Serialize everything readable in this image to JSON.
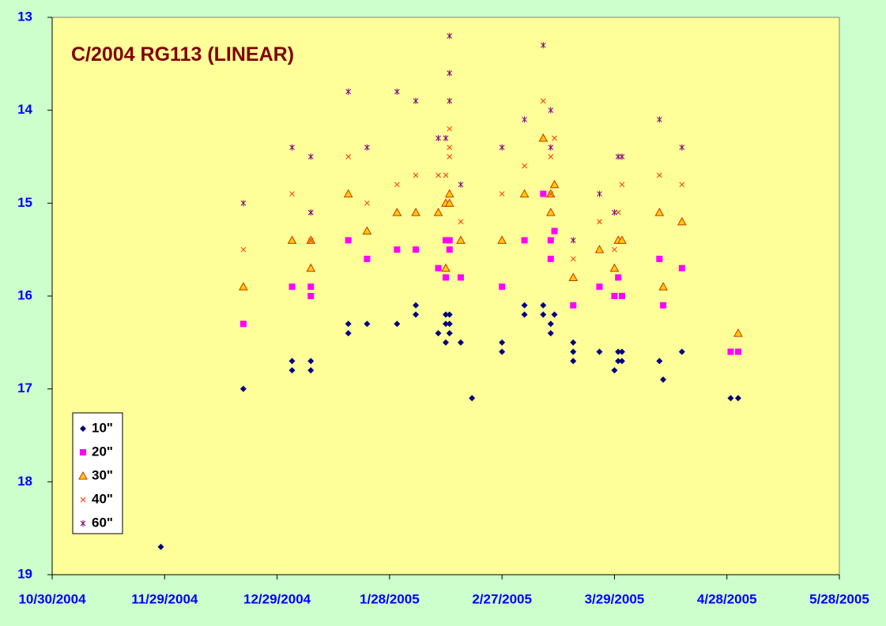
{
  "chart_data": {
    "type": "scatter",
    "title": "C/2004 RG113 (LINEAR)",
    "xlim": [
      "10/30/2004",
      "5/28/2005"
    ],
    "xticks": [
      "10/30/2004",
      "11/29/2004",
      "12/29/2004",
      "1/28/2005",
      "2/27/2005",
      "3/29/2005",
      "4/28/2005",
      "5/28/2005"
    ],
    "ylim": [
      13,
      19
    ],
    "yticks": [
      13,
      14,
      15,
      16,
      17,
      18,
      19
    ],
    "y_reversed": true,
    "grid": false,
    "legend": "lower left",
    "series": [
      {
        "name": "10\"",
        "color": "#000080",
        "marker": "diamond",
        "x": [
          "11/28/2004",
          "12/20/2004",
          "1/2/2005",
          "1/2/2005",
          "1/7/2005",
          "1/7/2005",
          "1/17/2005",
          "1/17/2005",
          "1/22/2005",
          "1/30/2005",
          "2/4/2005",
          "2/4/2005",
          "2/10/2005",
          "2/12/2005",
          "2/12/2005",
          "2/12/2005",
          "2/13/2005",
          "2/13/2005",
          "2/13/2005",
          "2/16/2005",
          "2/19/2005",
          "2/27/2005",
          "2/27/2005",
          "3/5/2005",
          "3/5/2005",
          "3/10/2005",
          "3/10/2005",
          "3/12/2005",
          "3/12/2005",
          "3/13/2005",
          "3/18/2005",
          "3/18/2005",
          "3/18/2005",
          "3/25/2005",
          "3/29/2005",
          "3/30/2005",
          "3/30/2005",
          "3/31/2005",
          "3/31/2005",
          "4/10/2005",
          "4/11/2005",
          "4/16/2005",
          "4/29/2005",
          "5/1/2005"
        ],
        "values": [
          18.7,
          17.0,
          16.7,
          16.8,
          16.7,
          16.8,
          16.3,
          16.4,
          16.3,
          16.3,
          16.1,
          16.2,
          16.4,
          16.2,
          16.3,
          16.5,
          16.2,
          16.3,
          16.4,
          16.5,
          17.1,
          16.5,
          16.6,
          16.1,
          16.2,
          16.1,
          16.2,
          16.3,
          16.4,
          16.2,
          16.5,
          16.6,
          16.7,
          16.6,
          16.8,
          16.6,
          16.7,
          16.6,
          16.7,
          16.7,
          16.9,
          16.6,
          17.1,
          17.1
        ]
      },
      {
        "name": "20\"",
        "color": "#ff00ff",
        "marker": "square",
        "x": [
          "12/20/2004",
          "1/2/2005",
          "1/7/2005",
          "1/7/2005",
          "1/17/2005",
          "1/22/2005",
          "1/30/2005",
          "2/4/2005",
          "2/10/2005",
          "2/12/2005",
          "2/12/2005",
          "2/13/2005",
          "2/13/2005",
          "2/16/2005",
          "2/27/2005",
          "3/5/2005",
          "3/10/2005",
          "3/12/2005",
          "3/12/2005",
          "3/13/2005",
          "3/18/2005",
          "3/25/2005",
          "3/29/2005",
          "3/30/2005",
          "3/31/2005",
          "4/10/2005",
          "4/11/2005",
          "4/16/2005",
          "4/29/2005",
          "5/1/2005"
        ],
        "values": [
          16.3,
          15.9,
          15.9,
          16.0,
          15.4,
          15.6,
          15.5,
          15.5,
          15.7,
          15.4,
          15.8,
          15.4,
          15.5,
          15.8,
          15.9,
          15.4,
          14.9,
          15.4,
          15.6,
          15.3,
          16.1,
          15.9,
          16.0,
          15.8,
          16.0,
          15.6,
          16.1,
          15.7,
          16.6,
          16.6
        ]
      },
      {
        "name": "30\"",
        "color": "#ffcc00",
        "marker": "triangle",
        "x": [
          "12/20/2004",
          "1/2/2005",
          "1/7/2005",
          "1/7/2005",
          "1/17/2005",
          "1/22/2005",
          "1/30/2005",
          "2/4/2005",
          "2/10/2005",
          "2/12/2005",
          "2/12/2005",
          "2/13/2005",
          "2/13/2005",
          "2/16/2005",
          "2/27/2005",
          "3/5/2005",
          "3/10/2005",
          "3/12/2005",
          "3/12/2005",
          "3/13/2005",
          "3/18/2005",
          "3/25/2005",
          "3/29/2005",
          "3/30/2005",
          "3/31/2005",
          "4/10/2005",
          "4/11/2005",
          "4/16/2005",
          "5/1/2005"
        ],
        "values": [
          15.9,
          15.4,
          15.4,
          15.7,
          14.9,
          15.3,
          15.1,
          15.1,
          15.1,
          15.7,
          15.0,
          14.9,
          15.0,
          15.4,
          15.4,
          14.9,
          14.3,
          14.9,
          15.1,
          14.8,
          15.8,
          15.5,
          15.7,
          15.4,
          15.4,
          15.1,
          15.9,
          15.2,
          16.4
        ]
      },
      {
        "name": "40\"",
        "color": "#ff3300",
        "marker": "x",
        "x": [
          "12/20/2004",
          "1/2/2005",
          "1/7/2005",
          "1/7/2005",
          "1/17/2005",
          "1/22/2005",
          "1/30/2005",
          "2/4/2005",
          "2/10/2005",
          "2/12/2005",
          "2/13/2005",
          "2/13/2005",
          "2/13/2005",
          "2/16/2005",
          "2/27/2005",
          "3/5/2005",
          "3/10/2005",
          "3/12/2005",
          "3/12/2005",
          "3/13/2005",
          "3/18/2005",
          "3/25/2005",
          "3/29/2005",
          "3/30/2005",
          "3/31/2005",
          "4/10/2005",
          "4/16/2005"
        ],
        "values": [
          15.5,
          14.9,
          15.4,
          15.1,
          14.5,
          15.0,
          14.8,
          14.7,
          14.7,
          14.7,
          14.2,
          14.4,
          14.5,
          15.2,
          14.9,
          14.6,
          13.9,
          14.5,
          14.9,
          14.3,
          15.6,
          15.2,
          15.5,
          15.1,
          14.8,
          14.7,
          14.8
        ]
      },
      {
        "name": "60\"",
        "color": "#800080",
        "marker": "star",
        "x": [
          "12/20/2004",
          "1/2/2005",
          "1/7/2005",
          "1/7/2005",
          "1/17/2005",
          "1/22/2005",
          "1/30/2005",
          "2/4/2005",
          "2/10/2005",
          "2/12/2005",
          "2/13/2005",
          "2/13/2005",
          "2/13/2005",
          "2/16/2005",
          "2/27/2005",
          "3/5/2005",
          "3/10/2005",
          "3/12/2005",
          "3/12/2005",
          "3/18/2005",
          "3/25/2005",
          "3/29/2005",
          "3/30/2005",
          "3/31/2005",
          "4/10/2005",
          "4/16/2005"
        ],
        "values": [
          15.0,
          14.4,
          14.5,
          15.1,
          13.8,
          14.4,
          13.8,
          13.9,
          14.3,
          14.3,
          13.2,
          13.6,
          13.9,
          14.8,
          14.4,
          14.1,
          13.3,
          14.0,
          14.4,
          15.4,
          14.9,
          15.1,
          14.5,
          14.5,
          14.1,
          14.4
        ]
      }
    ]
  }
}
